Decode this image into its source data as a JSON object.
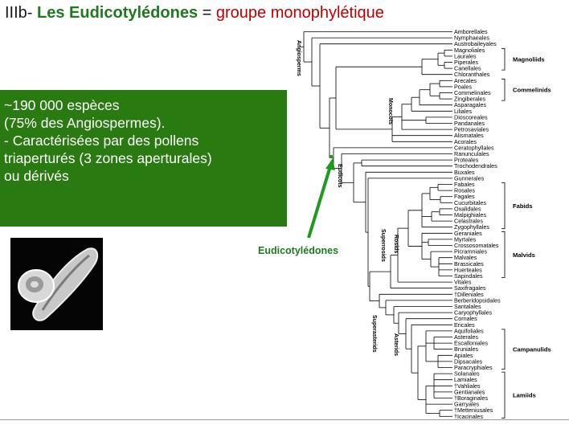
{
  "title": {
    "prefix": "IIIb- ",
    "bold": "Les Eudicotylédones",
    "equals": " = ",
    "red": "groupe monophylétique"
  },
  "info_box": {
    "lines": [
      "~190 000 espèces",
      "(75% des Angiospermes).",
      "",
      "- Caractérisées par des pollens",
      "triaperturés (3 zones aperturales)",
      "ou dérivés"
    ],
    "background": "#2a7a12"
  },
  "image": {
    "description_icon": "pollen-grain-photo"
  },
  "annotation": {
    "label": "Eudicotylédones",
    "color": "#1e7a1e",
    "arrow_icon": "arrow-up-right-icon"
  },
  "tree": {
    "taxa": [
      "Amborellales",
      "Nymphaeales",
      "Austrobaileyales",
      "Magnoliales",
      "Laurales",
      "Piperales",
      "Canellales",
      "Chloranthales",
      "Arecales",
      "Poales",
      "Commelinales",
      "Zingiberales",
      "Asparagales",
      "Liliales",
      "Dioscoreales",
      "Pandanales",
      "Petrosaviales",
      "Alismatales",
      "Acorales",
      "Ceratophyllales",
      "Ranunculales",
      "Proteales",
      "Trochodendrales",
      "Buxales",
      "Gunnerales",
      "Fabales",
      "Rosales",
      "Fagales",
      "Cucurbitales",
      "Oxalidales",
      "Malpighiales",
      "Celastrales",
      "Zygophyllales",
      "Geraniales",
      "Myrtales",
      "Crossosomatales",
      "Picramniales",
      "Malvales",
      "Brassicales",
      "Huerteales",
      "Sapindales",
      "Vitales",
      "Saxifragales",
      "†Dilleniales",
      "Berberidopsidales",
      "Santalales",
      "Caryophyllales",
      "Cornales",
      "Ericales",
      "Aquifoliales",
      "Asterales",
      "Escalloniales",
      "Bruniales",
      "Apiales",
      "Dipsacales",
      "Paracryphiales",
      "Solanales",
      "Lamiales",
      "†Vahliales",
      "Gentianales",
      "†Boraginales",
      "Garryales",
      "†Metteniusales",
      "†Icacinales"
    ],
    "groups": [
      {
        "name": "Magnoliids",
        "from": 3,
        "to": 6
      },
      {
        "name": "Commelinids",
        "from": 8,
        "to": 11
      },
      {
        "name": "Fabids",
        "from": 25,
        "to": 32
      },
      {
        "name": "Malvids",
        "from": 33,
        "to": 40
      },
      {
        "name": "Campanulids",
        "from": 49,
        "to": 55
      },
      {
        "name": "Lamiids",
        "from": 56,
        "to": 63
      }
    ],
    "clades": [
      "Angiosperms",
      "Monocots",
      "Eudicots",
      "Superrosids",
      "Rosids",
      "Superasterids",
      "Asterids"
    ]
  }
}
